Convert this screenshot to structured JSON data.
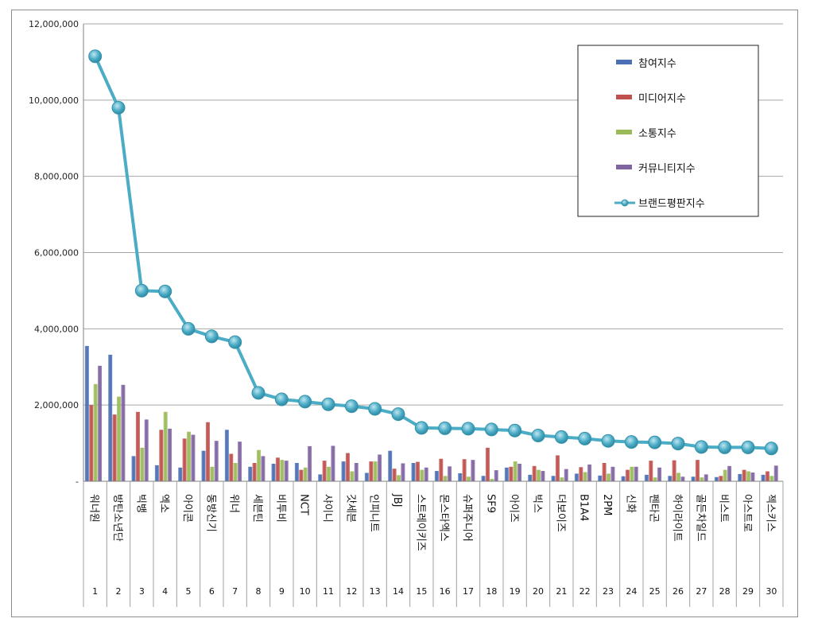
{
  "chart_data": {
    "type": "bar",
    "title": "",
    "xlabel": "",
    "ylabel": "",
    "ylim": [
      0,
      12000000
    ],
    "y_ticks": [
      "-",
      "2,000,000",
      "4,000,000",
      "6,000,000",
      "8,000,000",
      "10,000,000",
      "12,000,000"
    ],
    "grid": true,
    "legend_position": "top-right",
    "categories": [
      "워너원",
      "방탄소년단",
      "빅뱅",
      "엑소",
      "아이콘",
      "동방신기",
      "위너",
      "세븐틴",
      "비투비",
      "NCT",
      "샤이니",
      "갓세븐",
      "인피니트",
      "JBJ",
      "스트레이키즈",
      "몬스타엑스",
      "슈퍼주니어",
      "SF9",
      "아이즈",
      "빅스",
      "더보이즈",
      "B1A4",
      "2PM",
      "신화",
      "펜타곤",
      "하이라이트",
      "골든차일드",
      "비스트",
      "아스트로",
      "젝스키스"
    ],
    "ranks": [
      "1",
      "2",
      "3",
      "4",
      "5",
      "6",
      "7",
      "8",
      "9",
      "10",
      "11",
      "12",
      "13",
      "14",
      "15",
      "16",
      "17",
      "18",
      "19",
      "20",
      "21",
      "22",
      "23",
      "24",
      "25",
      "26",
      "27",
      "28",
      "29",
      "30"
    ],
    "series": [
      {
        "name": "참여지수",
        "type": "bar",
        "color": "#4a6fb5",
        "values": [
          3550000,
          3320000,
          660000,
          420000,
          360000,
          800000,
          1350000,
          380000,
          460000,
          480000,
          180000,
          520000,
          220000,
          800000,
          480000,
          270000,
          210000,
          140000,
          360000,
          170000,
          140000,
          200000,
          150000,
          130000,
          170000,
          140000,
          120000,
          110000,
          190000,
          170000
        ]
      },
      {
        "name": "미디어지수",
        "type": "bar",
        "color": "#c0504d",
        "values": [
          2000000,
          1750000,
          1820000,
          1350000,
          1120000,
          1550000,
          720000,
          480000,
          620000,
          300000,
          540000,
          740000,
          520000,
          330000,
          510000,
          590000,
          580000,
          880000,
          380000,
          400000,
          680000,
          370000,
          480000,
          300000,
          540000,
          550000,
          560000,
          140000,
          300000,
          260000
        ]
      },
      {
        "name": "소통지수",
        "type": "bar",
        "color": "#9bbb59",
        "values": [
          2550000,
          2220000,
          880000,
          1820000,
          1300000,
          380000,
          480000,
          820000,
          560000,
          360000,
          380000,
          260000,
          520000,
          160000,
          300000,
          140000,
          120000,
          60000,
          520000,
          300000,
          100000,
          240000,
          200000,
          380000,
          100000,
          220000,
          100000,
          300000,
          260000,
          140000
        ]
      },
      {
        "name": "커뮤니티지수",
        "type": "bar",
        "color": "#8064a2",
        "values": [
          3030000,
          2530000,
          1620000,
          1380000,
          1220000,
          1060000,
          1040000,
          660000,
          540000,
          920000,
          930000,
          480000,
          700000,
          470000,
          360000,
          390000,
          560000,
          290000,
          460000,
          270000,
          320000,
          440000,
          380000,
          380000,
          360000,
          120000,
          180000,
          400000,
          230000,
          410000
        ]
      },
      {
        "name": "브랜드평판지수",
        "type": "line",
        "color": "#4bacc6",
        "values": [
          11150000,
          9800000,
          5000000,
          4980000,
          4000000,
          3800000,
          3650000,
          2320000,
          2150000,
          2090000,
          2020000,
          1970000,
          1900000,
          1760000,
          1400000,
          1390000,
          1380000,
          1360000,
          1330000,
          1200000,
          1160000,
          1120000,
          1060000,
          1030000,
          1020000,
          990000,
          900000,
          890000,
          890000,
          860000
        ]
      }
    ]
  }
}
